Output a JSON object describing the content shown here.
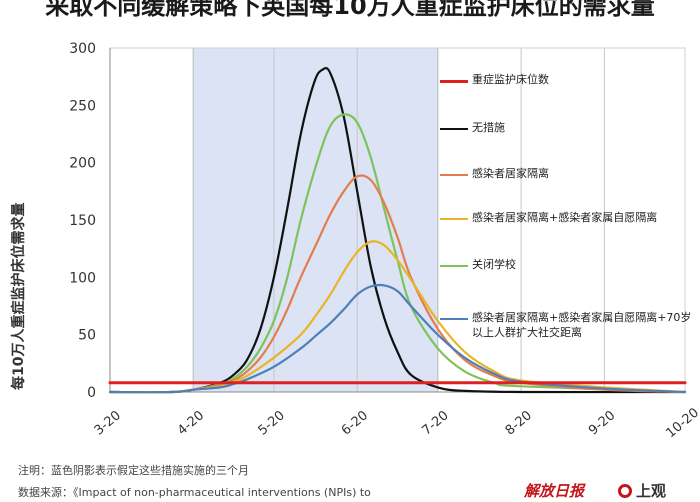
{
  "title": "采取不同缓解策略下英国每10万人重症监护床位的需求量",
  "chart_data": {
    "type": "line",
    "ylabel": "每10万人重症监护床位需求量",
    "xlabel": "",
    "x_ticks": [
      "3-20",
      "4-20",
      "5-20",
      "6-20",
      "7-20",
      "8-20",
      "9-20",
      "10-20"
    ],
    "y_ticks": [
      0,
      50,
      100,
      150,
      200,
      250,
      300
    ],
    "ylim": [
      0,
      300
    ],
    "xlim": [
      "3-20",
      "10-20"
    ],
    "grid": "vertical",
    "legend_position": "right",
    "shaded_region": {
      "from": "4-20",
      "to": "7-20",
      "color": "#dbe3f4"
    },
    "series": [
      {
        "name": "重症监护床位数",
        "color": "#e02020",
        "x": [
          "3-20",
          "10-20"
        ],
        "y": [
          8,
          8
        ]
      },
      {
        "name": "无措施",
        "color": "#111111",
        "x": [
          "3-20",
          "4-12",
          "4-20",
          "4-30",
          "5-05",
          "5-10",
          "5-15",
          "5-20",
          "5-25",
          "5-30",
          "6-04",
          "6-07",
          "6-10",
          "6-15",
          "6-20",
          "6-25",
          "6-30",
          "7-05",
          "7-10",
          "7-20",
          "7-30",
          "8-20",
          "10-20"
        ],
        "y": [
          0,
          0,
          2,
          8,
          15,
          28,
          55,
          100,
          160,
          225,
          270,
          281,
          278,
          240,
          175,
          110,
          65,
          35,
          15,
          4,
          1,
          0,
          0
        ]
      },
      {
        "name": "关闭学校",
        "color": "#7dc35a",
        "x": [
          "3-20",
          "4-12",
          "4-20",
          "4-30",
          "5-05",
          "5-10",
          "5-15",
          "5-20",
          "5-25",
          "5-30",
          "6-05",
          "6-10",
          "6-15",
          "6-20",
          "6-25",
          "6-30",
          "7-05",
          "7-10",
          "7-20",
          "7-30",
          "8-10",
          "8-20",
          "10-20"
        ],
        "y": [
          0,
          0,
          2,
          7,
          12,
          22,
          38,
          62,
          100,
          150,
          200,
          232,
          242,
          235,
          205,
          160,
          115,
          75,
          38,
          18,
          8,
          5,
          0
        ]
      },
      {
        "name": "感染者居家隔离",
        "color": "#e27d4e",
        "x": [
          "3-20",
          "4-12",
          "4-20",
          "4-30",
          "5-05",
          "5-10",
          "5-15",
          "5-20",
          "5-25",
          "5-30",
          "6-05",
          "6-10",
          "6-15",
          "6-20",
          "6-25",
          "6-30",
          "7-05",
          "7-10",
          "7-20",
          "7-30",
          "8-10",
          "8-20",
          "9-20",
          "10-20"
        ],
        "y": [
          0,
          0,
          2,
          6,
          10,
          18,
          30,
          48,
          72,
          100,
          130,
          155,
          175,
          188,
          185,
          165,
          135,
          100,
          55,
          28,
          14,
          8,
          2,
          0
        ]
      },
      {
        "name": "感染者居家隔离+感染者家属自愿隔离",
        "color": "#e8b429",
        "x": [
          "3-20",
          "4-12",
          "4-20",
          "4-30",
          "5-05",
          "5-10",
          "5-20",
          "5-30",
          "6-05",
          "6-10",
          "6-15",
          "6-20",
          "6-25",
          "6-30",
          "7-05",
          "7-10",
          "7-20",
          "7-30",
          "8-10",
          "8-20",
          "9-20",
          "10-20"
        ],
        "y": [
          0,
          0,
          2,
          5,
          9,
          14,
          30,
          50,
          68,
          85,
          105,
          122,
          131,
          128,
          115,
          98,
          62,
          35,
          18,
          10,
          4,
          0
        ]
      },
      {
        "name": "感染者居家隔离+感染者家属自愿隔离+70岁以上人群扩大社交距离",
        "color": "#4d80b8",
        "x": [
          "3-20",
          "4-12",
          "4-20",
          "4-30",
          "5-05",
          "5-10",
          "5-20",
          "5-30",
          "6-05",
          "6-10",
          "6-15",
          "6-20",
          "6-25",
          "6-30",
          "7-05",
          "7-10",
          "7-20",
          "7-30",
          "8-10",
          "8-20",
          "9-20",
          "10-20"
        ],
        "y": [
          0,
          0,
          2,
          4,
          7,
          11,
          22,
          38,
          50,
          60,
          72,
          85,
          92,
          93,
          88,
          75,
          50,
          30,
          16,
          9,
          3,
          0
        ]
      }
    ]
  },
  "legend_order": [
    0,
    1,
    3,
    4,
    2,
    5
  ],
  "notes": {
    "note1": "注明：蓝色阴影表示假定这些措施实施的三个月",
    "note2": "数据来源：《Impact of non-pharmaceutical interventions (NPIs) to"
  },
  "logos": {
    "left": "解放日报",
    "right": "上观"
  }
}
